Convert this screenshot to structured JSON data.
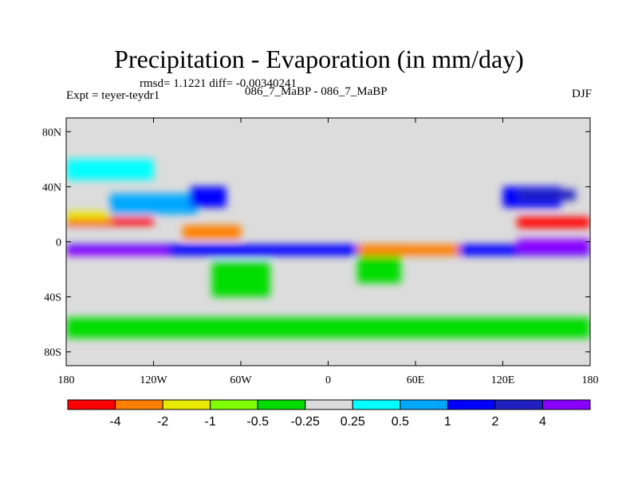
{
  "title": "Precipitation - Evaporation (in mm/day)",
  "stats_text": "rmsd= 1.1221 diff= -0.00340241",
  "left_label": "Expt = teyer-teydr1",
  "center_label": "086_7_MaBP - 086_7_MaBP",
  "right_label": "DJF",
  "chart_data": {
    "type": "heatmap",
    "title": "Precipitation - Evaporation (in mm/day)",
    "xlabel": "",
    "ylabel": "",
    "xlim": [
      -180,
      180
    ],
    "ylim": [
      -90,
      90
    ],
    "x_ticks": [
      {
        "value": -180,
        "label": "180"
      },
      {
        "value": -120,
        "label": "120W"
      },
      {
        "value": -60,
        "label": "60W"
      },
      {
        "value": 0,
        "label": "0"
      },
      {
        "value": 60,
        "label": "60E"
      },
      {
        "value": 120,
        "label": "120E"
      },
      {
        "value": 180,
        "label": "180"
      }
    ],
    "y_ticks": [
      {
        "value": 80,
        "label": "80N"
      },
      {
        "value": 40,
        "label": "40N"
      },
      {
        "value": 0,
        "label": "0"
      },
      {
        "value": -40,
        "label": "40S"
      },
      {
        "value": -80,
        "label": "80S"
      }
    ],
    "colorbar": {
      "colors": [
        "#ff0000",
        "#ff7f00",
        "#e8e800",
        "#80ff00",
        "#00dd00",
        "#dcdcdc",
        "#00ffff",
        "#00a8ff",
        "#0000ff",
        "#2020c0",
        "#8800ff"
      ],
      "labels": [
        "-4",
        "-2",
        "-1",
        "-0.5",
        "-0.25",
        "0.25",
        "0.5",
        "1",
        "2",
        "4"
      ]
    },
    "regions": [
      {
        "lon": [
          -180,
          180
        ],
        "lat": [
          -10,
          -2
        ],
        "level": 8
      },
      {
        "lon": [
          -180,
          -110
        ],
        "lat": [
          -10,
          -4
        ],
        "level": 10
      },
      {
        "lon": [
          130,
          180
        ],
        "lat": [
          -8,
          2
        ],
        "level": 10
      },
      {
        "lon": [
          -180,
          -120
        ],
        "lat": [
          12,
          18
        ],
        "level": 0
      },
      {
        "lon": [
          -180,
          -150
        ],
        "lat": [
          16,
          22
        ],
        "level": 2
      },
      {
        "lon": [
          -100,
          -60
        ],
        "lat": [
          2,
          12
        ],
        "level": 1
      },
      {
        "lon": [
          20,
          90
        ],
        "lat": [
          -10,
          -2
        ],
        "level": 1
      },
      {
        "lon": [
          130,
          180
        ],
        "lat": [
          10,
          18
        ],
        "level": 0
      },
      {
        "lon": [
          -150,
          -90
        ],
        "lat": [
          20,
          35
        ],
        "level": 7
      },
      {
        "lon": [
          -95,
          -70
        ],
        "lat": [
          25,
          40
        ],
        "level": 8
      },
      {
        "lon": [
          120,
          160
        ],
        "lat": [
          25,
          40
        ],
        "level": 8
      },
      {
        "lon": [
          130,
          170
        ],
        "lat": [
          30,
          38
        ],
        "level": 9
      },
      {
        "lon": [
          -80,
          -40
        ],
        "lat": [
          -40,
          -15
        ],
        "level": 4
      },
      {
        "lon": [
          20,
          50
        ],
        "lat": [
          -30,
          -10
        ],
        "level": 4
      },
      {
        "lon": [
          -180,
          180
        ],
        "lat": [
          -70,
          -55
        ],
        "level": 4
      },
      {
        "lon": [
          -180,
          -120
        ],
        "lat": [
          45,
          60
        ],
        "level": 6
      }
    ]
  }
}
